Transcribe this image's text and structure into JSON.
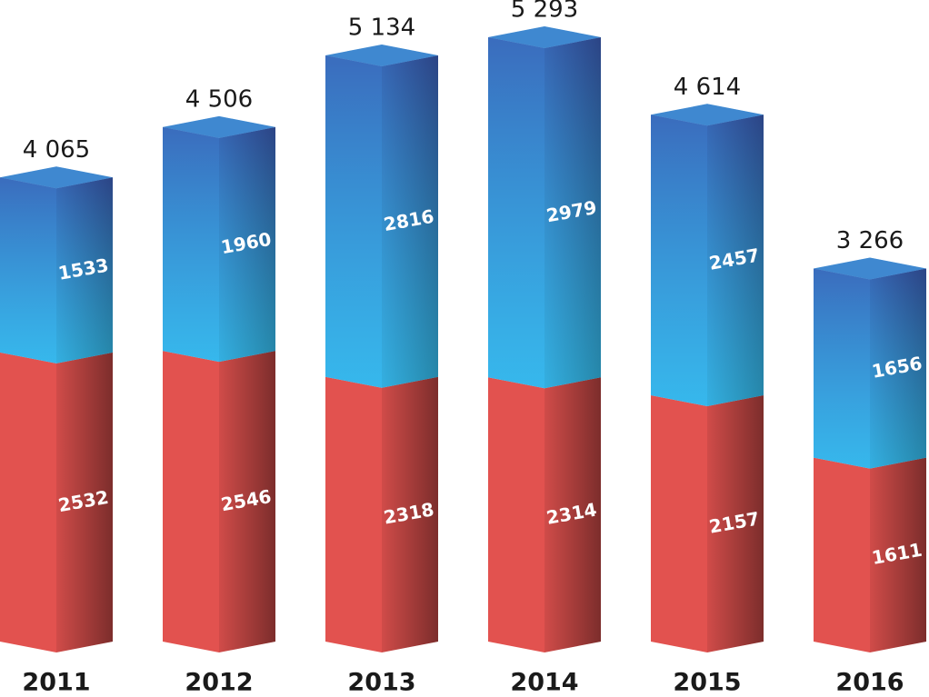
{
  "chart_data": {
    "type": "stacked-bar-3d",
    "categories": [
      "2011",
      "2012",
      "2013",
      "2014",
      "2015",
      "2016"
    ],
    "series": [
      {
        "color": "#e2524f",
        "values": [
          2532,
          2546,
          2318,
          2314,
          2157,
          1611
        ]
      },
      {
        "color": "#3aa2e2",
        "values": [
          1533,
          1960,
          2816,
          2979,
          2457,
          1656
        ]
      }
    ],
    "totals": {
      "values": [
        4065,
        4506,
        5134,
        5293,
        4614,
        3266
      ],
      "value_labels": [
        "4 065",
        "4 506",
        "5 134",
        "5 293",
        "4 614",
        "3 266"
      ]
    }
  }
}
